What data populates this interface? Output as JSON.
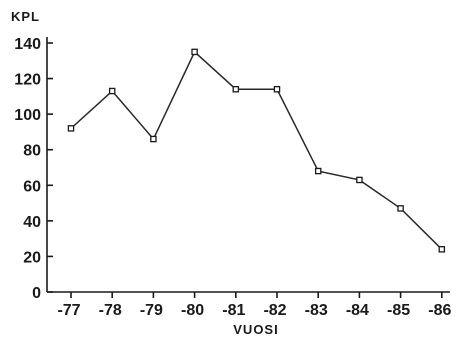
{
  "chart_data": {
    "type": "line",
    "ylabel": "KPL",
    "xlabel": "VUOSI",
    "categories": [
      "-77",
      "-78",
      "-79",
      "-80",
      "-81",
      "-82",
      "-83",
      "-84",
      "-85",
      "-86"
    ],
    "values": [
      92,
      113,
      86,
      135,
      114,
      114,
      68,
      63,
      47,
      24
    ],
    "ylim": [
      0,
      140
    ],
    "yticks": [
      0,
      20,
      40,
      60,
      80,
      100,
      120,
      140
    ],
    "grid": false,
    "colors": {
      "line": "#2a2a2a",
      "axis": "#1a1a1a",
      "marker": "#ffffff"
    }
  }
}
